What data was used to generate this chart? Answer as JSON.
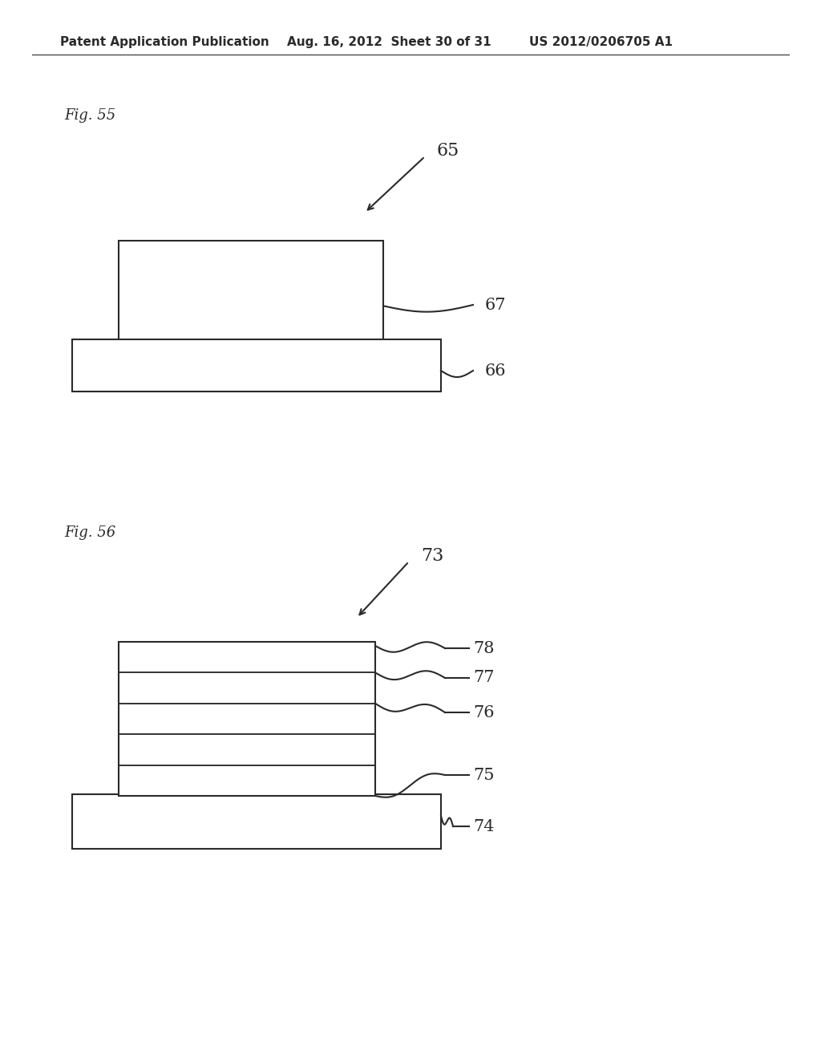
{
  "bg_color": "#ffffff",
  "header_left": "Patent Application Publication",
  "header_mid": "Aug. 16, 2012  Sheet 30 of 31",
  "header_right": "US 2012/0206705 A1",
  "line_color": "#2a2a2a",
  "line_width": 1.5,
  "fig55_label": "Fig. 55",
  "fig56_label": "Fig. 56",
  "label65": "65",
  "label66": "66",
  "label67": "67",
  "label73": "73",
  "label74": "74",
  "label75": "75",
  "label76": "76",
  "label77": "77",
  "label78": "78"
}
